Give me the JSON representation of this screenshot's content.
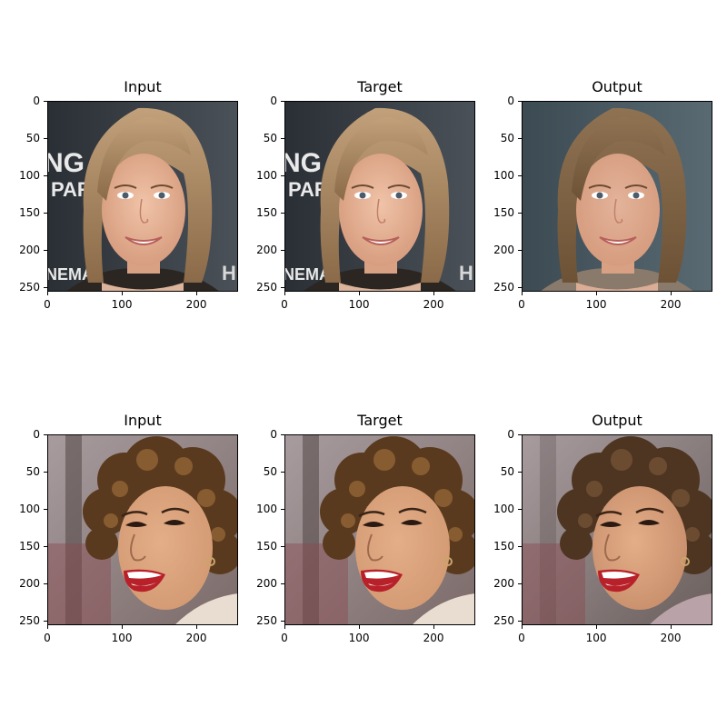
{
  "figure": {
    "panels": [
      {
        "row": 0,
        "col": 0,
        "title": "Input",
        "image": "photo-woman-blonde-smiling-input"
      },
      {
        "row": 0,
        "col": 1,
        "title": "Target",
        "image": "photo-woman-blonde-smiling-target"
      },
      {
        "row": 0,
        "col": 2,
        "title": "Output",
        "image": "photo-woman-blonde-smiling-output"
      },
      {
        "row": 1,
        "col": 0,
        "title": "Input",
        "image": "photo-woman-curly-laughing-input"
      },
      {
        "row": 1,
        "col": 1,
        "title": "Target",
        "image": "photo-woman-curly-laughing-target"
      },
      {
        "row": 1,
        "col": 2,
        "title": "Output",
        "image": "photo-woman-curly-laughing-output"
      }
    ],
    "axes": {
      "yticks": [
        0,
        50,
        100,
        150,
        200,
        250
      ],
      "xticks": [
        0,
        100,
        200
      ],
      "range": [
        0,
        256
      ]
    },
    "backdrop_text": {
      "row0_left": [
        "NG",
        "PAR",
        "NEMA"
      ],
      "row0_right": [
        "H"
      ]
    }
  }
}
